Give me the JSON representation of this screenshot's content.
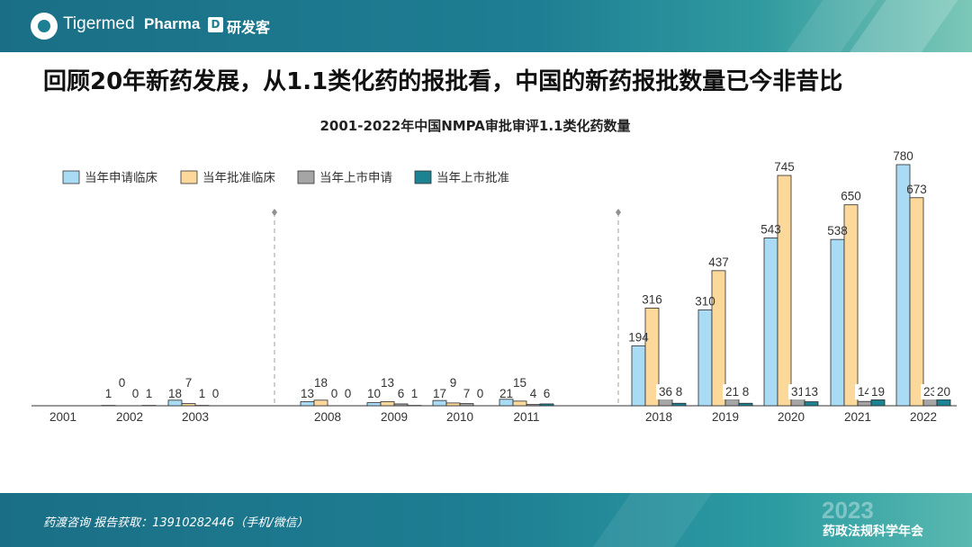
{
  "header": {
    "logo_text": "Tigermed",
    "pharma_text": "Pharma",
    "pharma_badge": "D",
    "pharma_cn": "研发客"
  },
  "main_title": "回顾20年新药发展，从1.1类化药的报批看，中国的新药报批数量已今非昔比",
  "footer": {
    "contact": "药渡咨询 报告获取：13910282446（手机/微信）",
    "year": "2023",
    "event": "药政法规科学年会"
  },
  "colors": {
    "header_bg": "#1e7e93",
    "series": [
      "#a9dbf5",
      "#fcd99b",
      "#a5a5a5",
      "#1d8291"
    ]
  },
  "chart_data": {
    "type": "bar",
    "title": "2001-2022年中国NMPA审批审评1.1类化药数量",
    "legend_position": "top-left",
    "ylim": [
      0,
      780
    ],
    "categories": [
      "2001",
      "2002",
      "2003",
      "2008",
      "2009",
      "2010",
      "2011",
      "2018",
      "2019",
      "2020",
      "2021",
      "2022"
    ],
    "series": [
      {
        "name": "当年申请临床",
        "values": [
          null,
          1,
          18,
          13,
          10,
          17,
          21,
          194,
          310,
          543,
          538,
          780
        ]
      },
      {
        "name": "当年批准临床",
        "values": [
          null,
          0,
          7,
          18,
          13,
          9,
          15,
          316,
          437,
          745,
          650,
          673
        ]
      },
      {
        "name": "当年上市申请",
        "values": [
          null,
          0,
          1,
          0,
          6,
          7,
          4,
          36,
          21,
          31,
          14,
          23
        ]
      },
      {
        "name": "当年上市批准",
        "values": [
          null,
          1,
          0,
          0,
          1,
          0,
          6,
          8,
          8,
          13,
          19,
          20
        ]
      }
    ]
  }
}
